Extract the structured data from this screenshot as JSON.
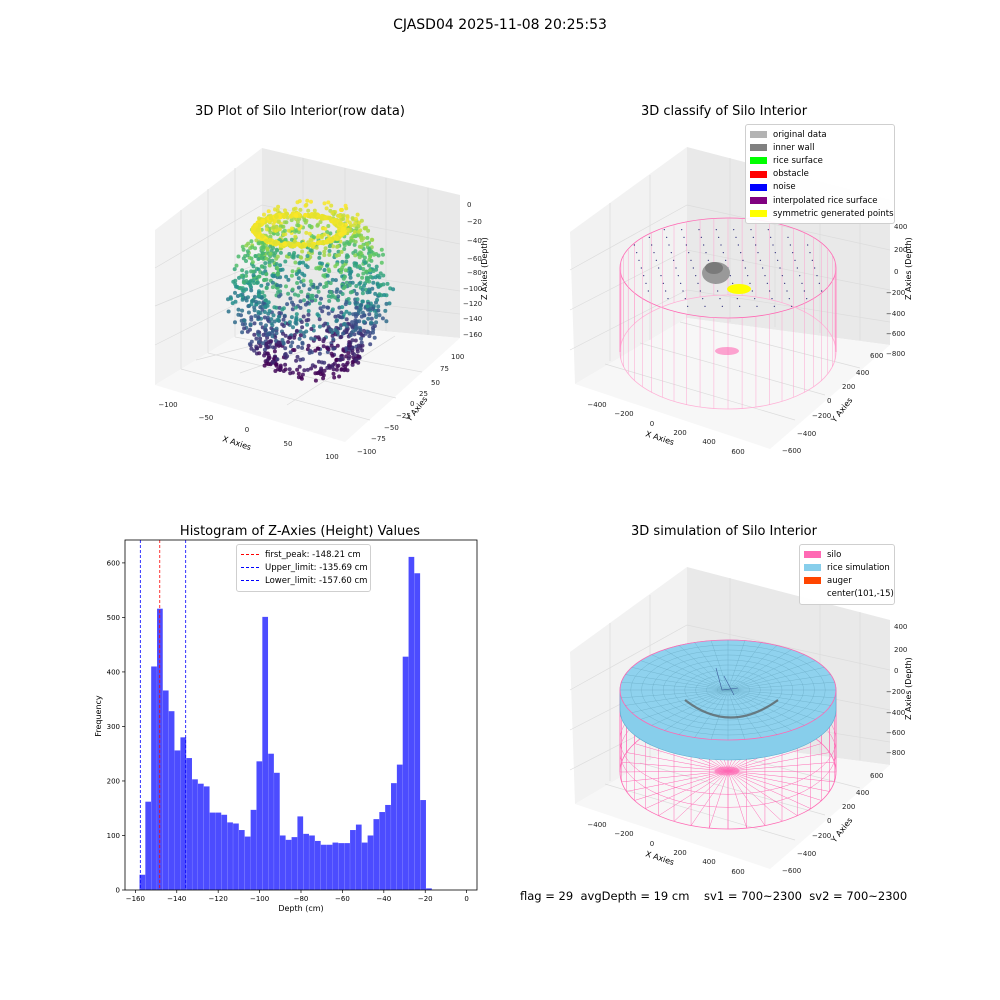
{
  "figure_title": "CJASD04 2025-11-08 20:25:53",
  "status_text": "flag = 29  avgDepth = 19 cm    sv1 = 700~2300  sv2 = 700~2300",
  "panels": {
    "raw": {
      "title": "3D Plot of Silo Interior(row data)",
      "x_label": "X Axies",
      "y_label": "Y Axies",
      "z_label": "Z Axies (Depth)",
      "x_ticks": [
        "−100",
        "−50",
        "0",
        "50",
        "100"
      ],
      "y_ticks": [
        "−100",
        "−75",
        "−50",
        "−25",
        "0",
        "25",
        "50",
        "75",
        "100"
      ],
      "z_ticks": [
        "0",
        "−20",
        "−40",
        "−60",
        "−80",
        "−100",
        "−120",
        "−140",
        "−160"
      ],
      "colormap": "viridis"
    },
    "classify": {
      "title": "3D classify of Silo Interior",
      "x_label": "X Axies",
      "y_label": "Y Axies",
      "z_label": "Z Axies (Depth)",
      "x_ticks": [
        "−400",
        "−200",
        "0",
        "200",
        "400",
        "600"
      ],
      "y_ticks": [
        "−600",
        "−400",
        "−200",
        "0",
        "200",
        "400",
        "600"
      ],
      "z_ticks": [
        "400",
        "200",
        "0",
        "−200",
        "−400",
        "−600",
        "−800"
      ],
      "legend": [
        {
          "label": "original data",
          "color": "#b3b3b3"
        },
        {
          "label": "inner wall",
          "color": "#808080"
        },
        {
          "label": "rice surface",
          "color": "#00ff00"
        },
        {
          "label": "obstacle",
          "color": "#ff0000"
        },
        {
          "label": "noise",
          "color": "#0000ff"
        },
        {
          "label": "interpolated rice surface",
          "color": "#800080"
        },
        {
          "label": "symmetric generated points",
          "color": "#ffff00"
        }
      ]
    },
    "simulation": {
      "title": "3D simulation of Silo Interior",
      "x_label": "X Axies",
      "y_label": "Y Axies",
      "z_label": "Z Axies (Depth)",
      "x_ticks": [
        "−400",
        "−200",
        "0",
        "200",
        "400",
        "600"
      ],
      "y_ticks": [
        "−600",
        "−400",
        "−200",
        "0",
        "200",
        "400",
        "600"
      ],
      "z_ticks": [
        "400",
        "200",
        "0",
        "−200",
        "−400",
        "−600",
        "−800"
      ],
      "legend": [
        {
          "label": "silo",
          "color": "#ff69b4"
        },
        {
          "label": "rice simulation",
          "color": "#87ceeb"
        },
        {
          "label": "auger",
          "color": "#ff4500"
        },
        {
          "label": "center(101,-15)",
          "color": ""
        }
      ]
    }
  },
  "chart_data": {
    "type": "bar",
    "title": "Histogram of Z-Axies (Height) Values",
    "xlabel": "Depth (cm)",
    "ylabel": "Frequency",
    "xlim": [
      -165,
      5
    ],
    "ylim": [
      0,
      642
    ],
    "x_ticks": [
      -160,
      -140,
      -120,
      -100,
      -80,
      -60,
      -40,
      -20,
      0
    ],
    "y_ticks": [
      0,
      100,
      200,
      300,
      400,
      500,
      600
    ],
    "bar_color": "#0000ff",
    "bins": {
      "start": -158,
      "width": 2.825,
      "values": [
        28,
        162,
        410,
        516,
        366,
        328,
        256,
        280,
        242,
        203,
        195,
        190,
        142,
        142,
        138,
        124,
        122,
        110,
        98,
        147,
        236,
        501,
        250,
        215,
        100,
        92,
        97,
        135,
        103,
        100,
        90,
        83,
        83,
        87,
        86,
        86,
        110,
        120,
        87,
        100,
        130,
        143,
        156,
        196,
        230,
        428,
        611,
        581,
        165,
        3
      ]
    },
    "vlines": [
      {
        "label": "first_peak: -148.21 cm",
        "x": -148.21,
        "color": "#ff0000"
      },
      {
        "label": "Upper_limit: -135.69 cm",
        "x": -135.69,
        "color": "#0000ff"
      },
      {
        "label": "Lower_limit: -157.60 cm",
        "x": -157.6,
        "color": "#0000ff"
      }
    ],
    "legend_position": "upper center"
  }
}
